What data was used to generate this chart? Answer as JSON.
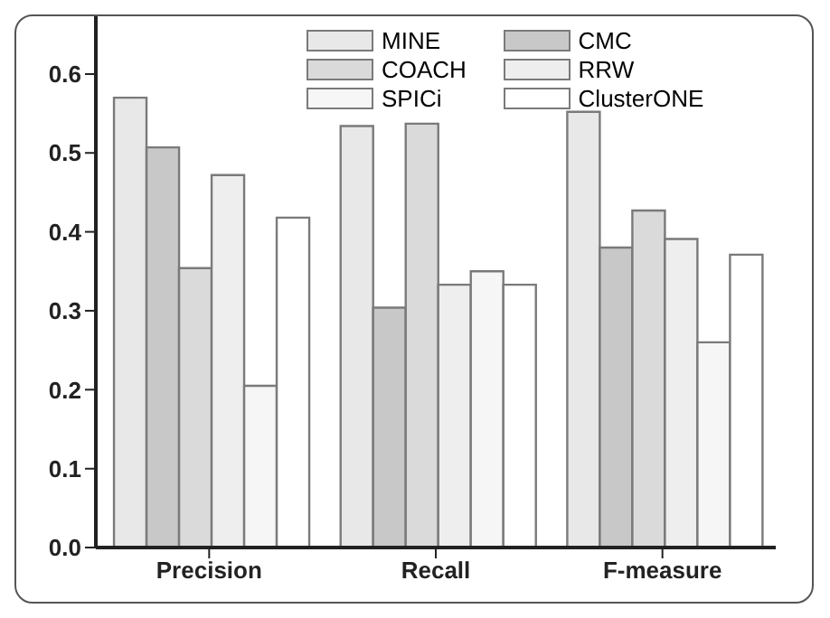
{
  "chart_data": {
    "type": "bar",
    "categories": [
      "Precision",
      "Recall",
      "F-measure"
    ],
    "series": [
      {
        "name": "MINE",
        "color": "#e8e8e8",
        "values": [
          0.57,
          0.534,
          0.552
        ]
      },
      {
        "name": "CMC",
        "color": "#c8c8c8",
        "values": [
          0.507,
          0.304,
          0.38
        ]
      },
      {
        "name": "COACH",
        "color": "#dadada",
        "values": [
          0.354,
          0.537,
          0.427
        ]
      },
      {
        "name": "RRW",
        "color": "#eeeeee",
        "values": [
          0.472,
          0.333,
          0.391
        ]
      },
      {
        "name": "SPICi",
        "color": "#f6f6f6",
        "values": [
          0.205,
          0.35,
          0.26
        ]
      },
      {
        "name": "ClusterONE",
        "color": "#ffffff",
        "values": [
          0.418,
          0.333,
          0.371
        ]
      }
    ],
    "ylim": [
      0,
      0.68
    ],
    "yticks": [
      {
        "value": 0,
        "label": "0.0"
      },
      {
        "value": 0.1,
        "label": "0.1"
      },
      {
        "value": 0.2,
        "label": "0.2"
      },
      {
        "value": 0.3,
        "label": "0.3"
      },
      {
        "value": 0.4,
        "label": "0.4"
      },
      {
        "value": 0.5,
        "label": "0.5"
      },
      {
        "value": 0.6,
        "label": "0.6"
      }
    ],
    "grid": false,
    "legend": "top right"
  }
}
